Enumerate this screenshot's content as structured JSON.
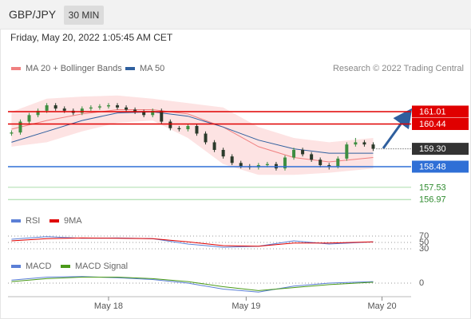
{
  "header": {
    "symbol": "GBP/JPY",
    "interval": "30 MIN"
  },
  "chart_data": [
    {
      "type": "candlestick",
      "subtitle": "Friday, May 20, 2022 1:05:45 AM CET",
      "credit": "Research © 2022 Trading Central",
      "xlim": [
        -0.4,
        45.3
      ],
      "xticks": [
        {
          "value": 11,
          "label": "May 18"
        },
        {
          "value": 26.6,
          "label": "May 19"
        },
        {
          "value": 42,
          "label": "May 20"
        }
      ],
      "ylim": [
        156.61,
        163.94
      ],
      "up_color": "#3e8e41",
      "down_color": "#2b3a2b",
      "open": [
        160.0,
        160.05,
        160.55,
        160.85,
        161.05,
        161.3,
        161.15,
        161.05,
        160.95,
        161.15,
        161.2,
        161.25,
        161.3,
        161.2,
        161.1,
        161.0,
        160.85,
        161.05,
        160.55,
        160.25,
        160.2,
        160.35,
        160.0,
        159.6,
        159.25,
        158.95,
        158.65,
        158.5,
        158.45,
        158.55,
        158.6,
        158.4,
        158.9,
        159.25,
        159.05,
        158.8,
        158.55,
        158.5,
        158.85,
        159.5,
        159.6,
        159.5
      ],
      "high": [
        160.15,
        160.65,
        160.95,
        161.15,
        161.4,
        161.4,
        161.25,
        161.15,
        161.25,
        161.3,
        161.35,
        161.4,
        161.4,
        161.3,
        161.2,
        161.1,
        161.15,
        161.15,
        160.65,
        160.35,
        160.45,
        160.45,
        160.1,
        159.7,
        159.35,
        159.05,
        158.75,
        158.6,
        158.65,
        158.7,
        158.7,
        159.0,
        159.35,
        159.35,
        159.15,
        158.9,
        158.65,
        158.95,
        159.6,
        159.8,
        159.7,
        159.6
      ],
      "low": [
        159.9,
        159.95,
        160.45,
        160.75,
        160.95,
        161.05,
        160.95,
        160.85,
        160.85,
        161.05,
        161.1,
        161.15,
        161.1,
        161.0,
        160.9,
        160.75,
        160.75,
        160.45,
        160.15,
        160.1,
        160.1,
        159.9,
        159.5,
        159.15,
        158.85,
        158.55,
        158.4,
        158.35,
        158.35,
        158.45,
        158.3,
        158.3,
        158.8,
        158.95,
        158.7,
        158.45,
        158.35,
        158.4,
        158.75,
        159.4,
        159.4,
        159.2
      ],
      "close": [
        160.05,
        160.55,
        160.85,
        161.05,
        161.3,
        161.15,
        161.05,
        160.95,
        161.15,
        161.2,
        161.25,
        161.3,
        161.2,
        161.1,
        161.0,
        160.85,
        161.05,
        160.55,
        160.25,
        160.2,
        160.35,
        160.0,
        159.6,
        159.25,
        158.95,
        158.65,
        158.5,
        158.45,
        158.55,
        158.6,
        158.4,
        158.9,
        159.25,
        159.05,
        158.8,
        158.55,
        158.5,
        158.85,
        159.5,
        159.6,
        159.5,
        159.3
      ],
      "overlays": {
        "x": [
          0,
          4,
          8,
          12,
          16,
          20,
          24,
          28,
          32,
          36,
          41
        ],
        "series": [
          {
            "name": "MA 20 + Bollinger Bands",
            "color": "#f08080",
            "band_color": "#fde3e3",
            "values": [
              160.2,
              160.6,
              160.9,
              161.1,
              161.1,
              160.9,
              160.3,
              159.4,
              158.9,
              158.7,
              158.9
            ],
            "upper": [
              161.0,
              161.6,
              161.7,
              161.75,
              161.6,
              161.4,
              161.2,
              160.3,
              159.8,
              159.6,
              159.8
            ],
            "lower": [
              159.4,
              159.6,
              160.1,
              160.5,
              160.6,
              159.8,
              158.6,
              158.1,
              158.1,
              158.2,
              158.4
            ]
          },
          {
            "name": "MA 50",
            "color": "#2f5f9e",
            "values": [
              159.6,
              160.1,
              160.6,
              160.95,
              161.0,
              160.8,
              160.3,
              159.7,
              159.3,
              159.1,
              159.1
            ]
          }
        ]
      },
      "levels": [
        {
          "value": 161.01,
          "color": "#e00000",
          "line": "solid",
          "boxed": true
        },
        {
          "value": 160.44,
          "color": "#e00000",
          "line": "solid",
          "boxed": true
        },
        {
          "value": 159.3,
          "label": "159.30",
          "color": "#333333",
          "line": "dotted",
          "boxed": true
        },
        {
          "value": 158.48,
          "color": "#2f6fd6",
          "line": "solid",
          "boxed": true
        },
        {
          "value": 157.53,
          "color": "#2e8b2e",
          "line": "thin",
          "boxed": false
        },
        {
          "value": 156.97,
          "color": "#2e8b2e",
          "line": "thin",
          "boxed": false
        }
      ]
    },
    {
      "type": "line",
      "ylim": [
        15,
        90
      ],
      "yticks": [
        70,
        50,
        30
      ],
      "x": [
        0,
        4,
        8,
        12,
        16,
        20,
        24,
        28,
        32,
        36,
        41
      ],
      "series": [
        {
          "name": "RSI",
          "color": "#5b7fd6",
          "values": [
            60,
            68,
            63,
            64,
            62,
            45,
            35,
            38,
            55,
            45,
            52
          ]
        },
        {
          "name": "9MA",
          "color": "#e00000",
          "values": [
            55,
            62,
            64,
            63,
            62,
            52,
            40,
            38,
            48,
            48,
            52
          ]
        }
      ]
    },
    {
      "type": "line",
      "ylim": [
        -0.4,
        0.4
      ],
      "yticks": [
        0
      ],
      "x": [
        0,
        4,
        8,
        12,
        16,
        20,
        24,
        28,
        32,
        36,
        41
      ],
      "series": [
        {
          "name": "MACD",
          "color": "#5b7fd6",
          "values": [
            0.1,
            0.2,
            0.22,
            0.18,
            0.12,
            0.0,
            -0.2,
            -0.3,
            -0.1,
            0.0,
            0.05
          ]
        },
        {
          "name": "MACD Signal",
          "color": "#4a9a1a",
          "values": [
            0.05,
            0.15,
            0.2,
            0.2,
            0.15,
            0.05,
            -0.12,
            -0.25,
            -0.15,
            -0.05,
            0.03
          ]
        }
      ]
    }
  ]
}
